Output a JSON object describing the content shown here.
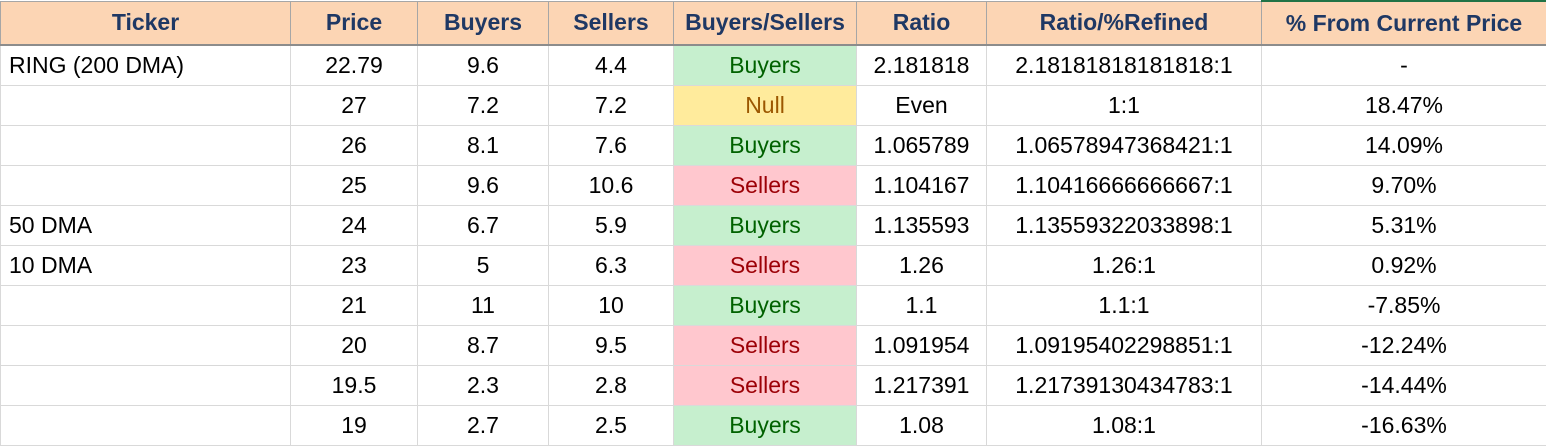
{
  "headers": {
    "ticker": "Ticker",
    "price": "Price",
    "buyers": "Buyers",
    "sellers": "Sellers",
    "buyers_sellers": "Buyers/Sellers",
    "ratio": "Ratio",
    "ratio_refined": "Ratio/%Refined",
    "pct_from_current": "% From Current Price"
  },
  "status_colors": {
    "Buyers": {
      "background": "#c6efce",
      "text": "#006100"
    },
    "Sellers": {
      "background": "#ffc7ce",
      "text": "#9c0006"
    },
    "Null": {
      "background": "#ffeb9c",
      "text": "#9c5700"
    }
  },
  "rows": [
    {
      "ticker": "RING (200 DMA)",
      "price": "22.79",
      "buyers": "9.6",
      "sellers": "4.4",
      "status": "Buyers",
      "ratio": "2.181818",
      "ratio_refined": "2.18181818181818:1",
      "pct": "-"
    },
    {
      "ticker": "",
      "price": "27",
      "buyers": "7.2",
      "sellers": "7.2",
      "status": "Null",
      "ratio": "Even",
      "ratio_refined": "1:1",
      "pct": "18.47%"
    },
    {
      "ticker": "",
      "price": "26",
      "buyers": "8.1",
      "sellers": "7.6",
      "status": "Buyers",
      "ratio": "1.065789",
      "ratio_refined": "1.06578947368421:1",
      "pct": "14.09%"
    },
    {
      "ticker": "",
      "price": "25",
      "buyers": "9.6",
      "sellers": "10.6",
      "status": "Sellers",
      "ratio": "1.104167",
      "ratio_refined": "1.10416666666667:1",
      "pct": "9.70%"
    },
    {
      "ticker": "50 DMA",
      "price": "24",
      "buyers": "6.7",
      "sellers": "5.9",
      "status": "Buyers",
      "ratio": "1.135593",
      "ratio_refined": "1.13559322033898:1",
      "pct": "5.31%"
    },
    {
      "ticker": "10 DMA",
      "price": "23",
      "buyers": "5",
      "sellers": "6.3",
      "status": "Sellers",
      "ratio": "1.26",
      "ratio_refined": "1.26:1",
      "pct": "0.92%"
    },
    {
      "ticker": "",
      "price": "21",
      "buyers": "11",
      "sellers": "10",
      "status": "Buyers",
      "ratio": "1.1",
      "ratio_refined": "1.1:1",
      "pct": "-7.85%"
    },
    {
      "ticker": "",
      "price": "20",
      "buyers": "8.7",
      "sellers": "9.5",
      "status": "Sellers",
      "ratio": "1.091954",
      "ratio_refined": "1.09195402298851:1",
      "pct": "-12.24%"
    },
    {
      "ticker": "",
      "price": "19.5",
      "buyers": "2.3",
      "sellers": "2.8",
      "status": "Sellers",
      "ratio": "1.217391",
      "ratio_refined": "1.21739130434783:1",
      "pct": "-14.44%"
    },
    {
      "ticker": "",
      "price": "19",
      "buyers": "2.7",
      "sellers": "2.5",
      "status": "Buyers",
      "ratio": "1.08",
      "ratio_refined": "1.08:1",
      "pct": "-16.63%"
    }
  ]
}
